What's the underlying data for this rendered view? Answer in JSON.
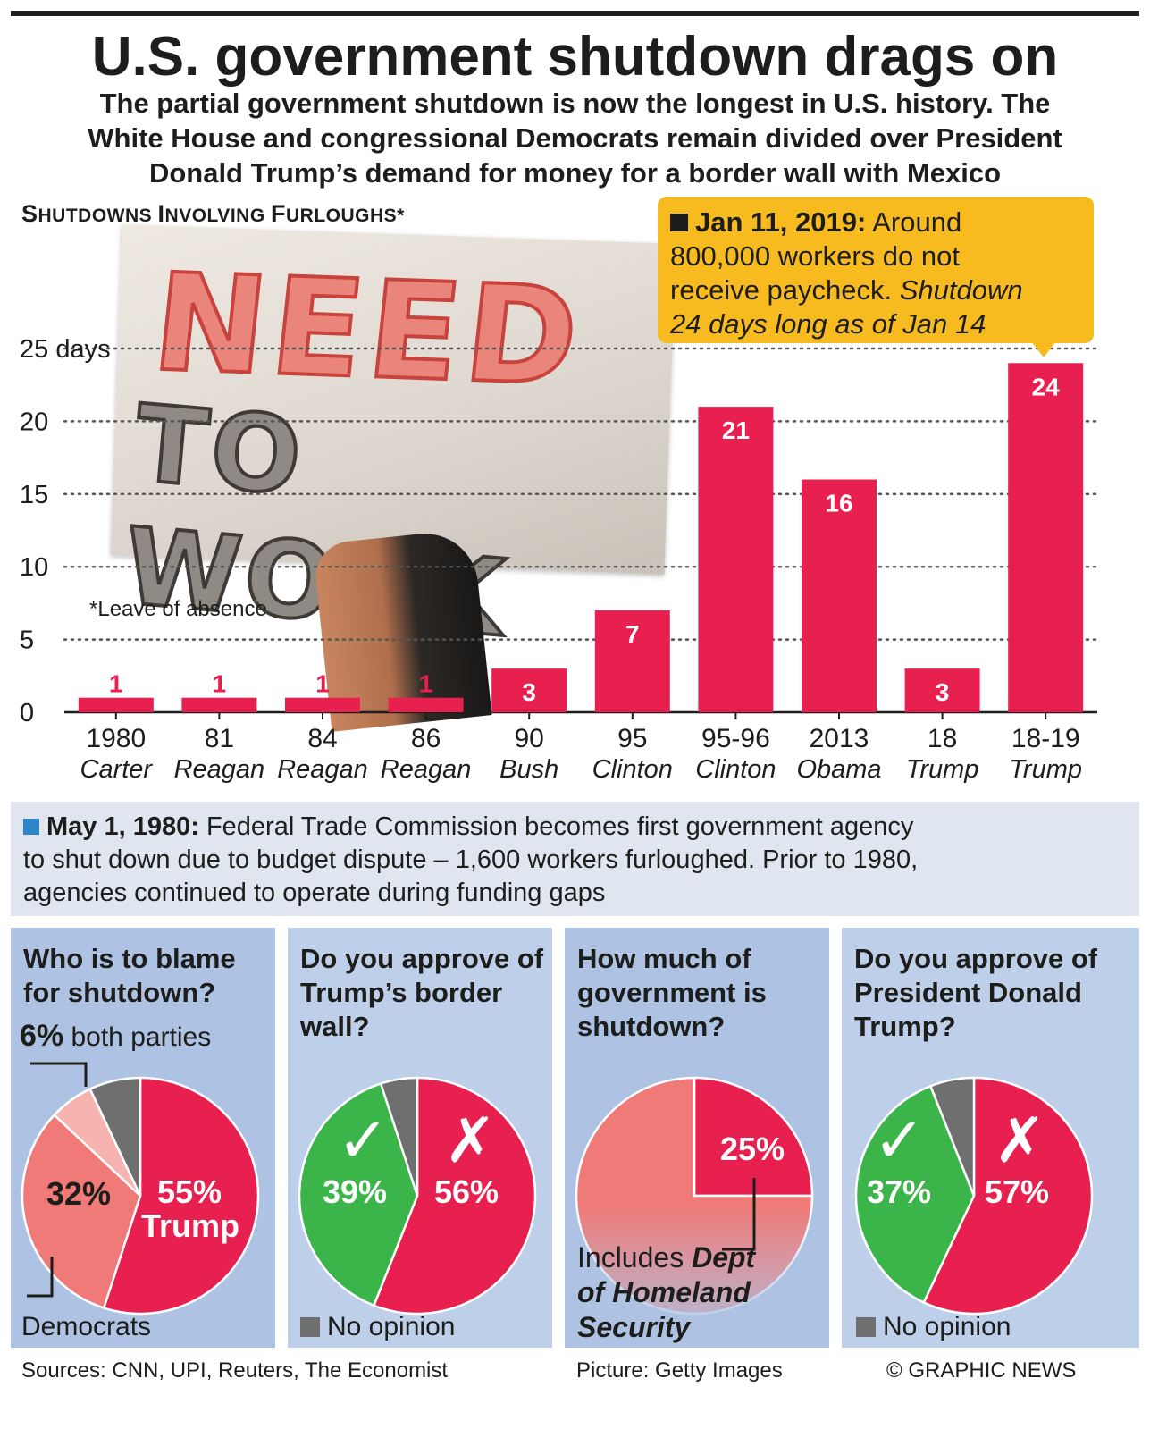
{
  "header": {
    "title": "U.S. government shutdown drags on",
    "subtitle_1": "The partial government shutdown is now the longest in U.S. history. The",
    "subtitle_2": "White House and congressional Democrats remain divided over President",
    "subtitle_3": "Donald Trump’s demand for money for a border wall with Mexico"
  },
  "section_label": {
    "s1": "S",
    "r1": "HUTDOWNS ",
    "s2": "I",
    "r2": "NVOLVING ",
    "s3": "F",
    "r3": "URLOUGHS*"
  },
  "photo": {
    "line1": "NEED",
    "line2": "TO WORK"
  },
  "callout": {
    "date": "Jan 11, 2019:",
    "text_1": " Around",
    "text_2": "800,000 workers do not",
    "text_3": "receive paycheck. ",
    "italic_1": "Shutdown",
    "italic_2": "24 days long as of Jan 14"
  },
  "note": "*Leave of absence",
  "chart_data": {
    "type": "bar",
    "categories": [
      "1980",
      "81",
      "84",
      "86",
      "90",
      "95",
      "95-96",
      "2013",
      "18",
      "18-19"
    ],
    "presidents": [
      "Carter",
      "Reagan",
      "Reagan",
      "Reagan",
      "Bush",
      "Clinton",
      "Clinton",
      "Obama",
      "Trump",
      "Trump"
    ],
    "values": [
      1,
      1,
      1,
      1,
      3,
      7,
      21,
      16,
      3,
      24
    ],
    "value_labels": [
      "1",
      "1",
      "1",
      "1",
      "3",
      "7",
      "21",
      "16",
      "3",
      "24"
    ],
    "ylim": [
      0,
      25
    ],
    "yticks": [
      0,
      5,
      10,
      15,
      20,
      25
    ],
    "ytick_labels": [
      "0",
      "5",
      "10",
      "15",
      "20",
      "25 days"
    ],
    "grid": true,
    "bar_color": "#e8204f"
  },
  "info": {
    "date": "May 1, 1980:",
    "text_1": " Federal Trade Commission becomes first government agency",
    "text_2": "to shut down due to budget dispute – 1,600 workers furloughed. Prior to 1980,",
    "text_3": "agencies continued to operate during funding gaps"
  },
  "polls": {
    "blame": {
      "question": "Who is to blame for shutdown?",
      "both_pct": "6%",
      "both_label": " both parties",
      "slices": [
        55,
        32,
        6,
        7
      ],
      "trump_pct": "55%",
      "trump_label": "Trump",
      "dem_pct": "32%",
      "dem_label": "Democrats"
    },
    "wall": {
      "question": "Do you approve of Trump’s border wall?",
      "slices": [
        56,
        39,
        5
      ],
      "yes_pct": "39%",
      "no_pct": "56%",
      "no_opinion": "No opinion"
    },
    "gov": {
      "question": "How much of government is shutdown?",
      "share": 25,
      "pct": "25%",
      "note_plain": "Includes ",
      "note_bold_1": "Dept",
      "note_bold_2": "of Homeland",
      "note_bold_3": "Security"
    },
    "approve": {
      "question": "Do you approve of President Donald Trump?",
      "slices": [
        57,
        37,
        6
      ],
      "yes_pct": "37%",
      "no_pct": "57%",
      "no_opinion": "No opinion"
    }
  },
  "colors": {
    "red": "#e8204f",
    "salmon": "#f07a78",
    "pink": "#f6b3af",
    "grey": "#6f6f6f",
    "green": "#3bb54a",
    "gold": "#f7bb1f",
    "blue": "#2c86c8"
  },
  "footer": {
    "sources": "Sources: CNN, UPI, Reuters, The Economist",
    "picture": "Picture: Getty Images",
    "credit": "© GRAPHIC NEWS"
  }
}
